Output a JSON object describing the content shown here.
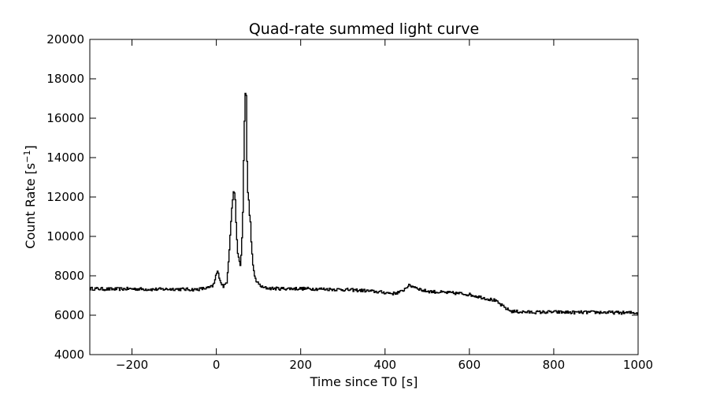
{
  "chart_data": {
    "type": "line",
    "title": "Quad-rate summed light curve",
    "xlabel": "Time since T0 [s]",
    "ylabel_text": "Count Rate [s",
    "ylabel_sup": "−1",
    "ylabel_close": "]",
    "xlim": [
      -300,
      1000
    ],
    "ylim": [
      4000,
      20000
    ],
    "xticks": [
      -200,
      0,
      200,
      400,
      600,
      800,
      1000
    ],
    "xtick_labels": [
      "−200",
      "0",
      "200",
      "400",
      "600",
      "800",
      "1000"
    ],
    "yticks": [
      4000,
      6000,
      8000,
      10000,
      12000,
      14000,
      16000,
      18000,
      20000
    ],
    "ytick_labels": [
      "4000",
      "6000",
      "8000",
      "10000",
      "12000",
      "14000",
      "16000",
      "18000",
      "20000"
    ],
    "grid": false,
    "series": [
      {
        "color": "#000000",
        "step": true,
        "x": [
          -300,
          -250,
          -200,
          -150,
          -100,
          -50,
          -20,
          -10,
          -5,
          0,
          3,
          8,
          12,
          18,
          25,
          30,
          34,
          38,
          42,
          45,
          48,
          51,
          54,
          57,
          60,
          63,
          66,
          68,
          70,
          71,
          72,
          73,
          74,
          75,
          76,
          77,
          78,
          80,
          82,
          84,
          86,
          88,
          92,
          96,
          100,
          105,
          110,
          120,
          130,
          150,
          200,
          250,
          300,
          350,
          400,
          420,
          440,
          455,
          470,
          490,
          510,
          540,
          580,
          600,
          620,
          640,
          660,
          680,
          690,
          700,
          720,
          750,
          800,
          850,
          900,
          950,
          1000
        ],
        "y": [
          7350,
          7320,
          7340,
          7310,
          7330,
          7300,
          7380,
          7450,
          7600,
          8100,
          8200,
          7900,
          7600,
          7450,
          7700,
          9000,
          10500,
          11700,
          12450,
          11800,
          10200,
          9200,
          8700,
          8600,
          9200,
          11200,
          15200,
          16500,
          18000,
          17200,
          14800,
          13800,
          12800,
          12200,
          11700,
          11800,
          11000,
          11200,
          10200,
          9400,
          8700,
          8300,
          7900,
          7700,
          7600,
          7500,
          7400,
          7380,
          7360,
          7350,
          7350,
          7330,
          7300,
          7250,
          7150,
          7100,
          7200,
          7500,
          7450,
          7250,
          7200,
          7150,
          7100,
          7050,
          6950,
          6850,
          6750,
          6450,
          6300,
          6200,
          6170,
          6150,
          6160,
          6140,
          6150,
          6130,
          6120
        ]
      }
    ]
  }
}
